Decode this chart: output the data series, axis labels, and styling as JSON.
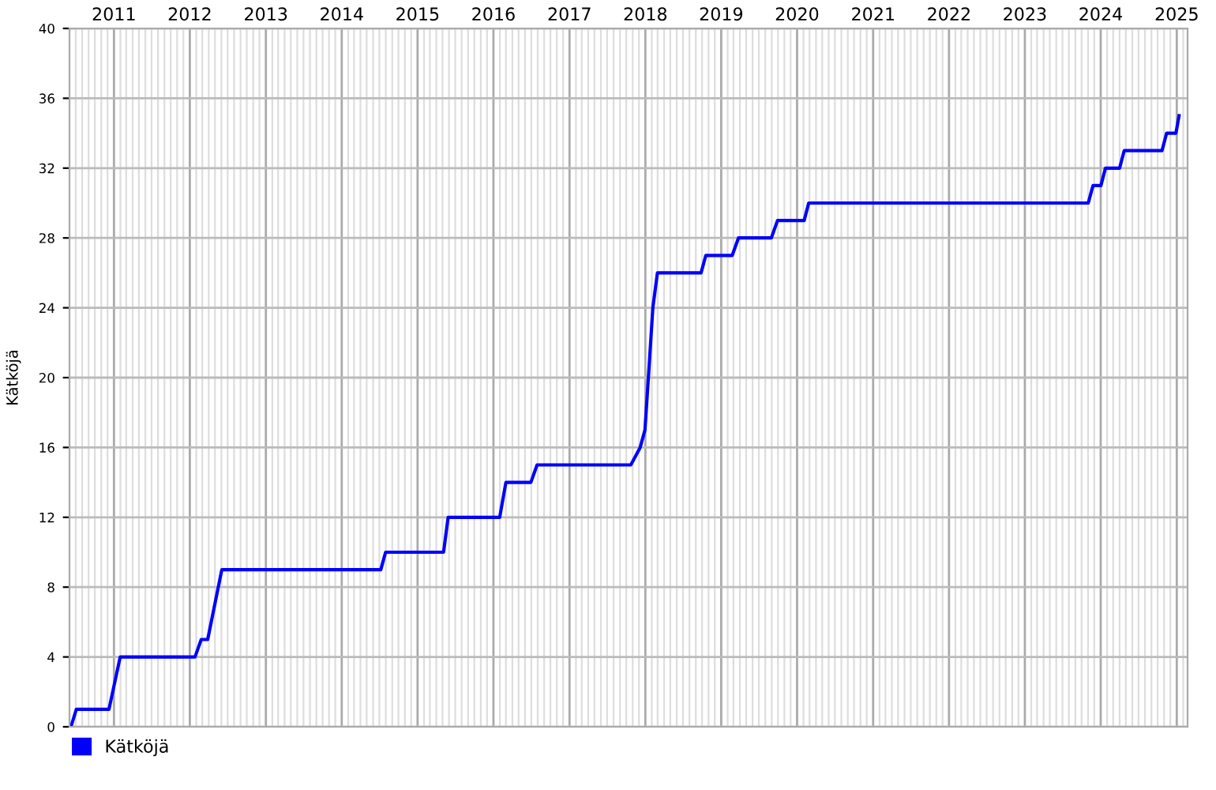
{
  "chart_data": {
    "type": "line",
    "ylabel": "Kätköjä",
    "x": [
      "2010-06-08",
      "2010-07-04",
      "2010-12-08",
      "2011-01-31",
      "2012-01-26",
      "2012-02-25",
      "2012-03-27",
      "2012-06-03",
      "2014-07-08",
      "2014-07-31",
      "2015-05-06",
      "2015-05-28",
      "2016-01-31",
      "2016-03-01",
      "2016-06-29",
      "2016-07-29",
      "2017-10-23",
      "2017-12-07",
      "2017-12-30",
      "2018-01-21",
      "2018-02-06",
      "2018-02-28",
      "2018-09-26",
      "2018-10-19",
      "2019-02-23",
      "2019-03-25",
      "2019-08-30",
      "2019-09-29",
      "2020-02-04",
      "2020-02-26",
      "2023-11-02",
      "2023-11-25",
      "2024-01-02",
      "2024-01-24",
      "2024-04-01",
      "2024-04-23",
      "2024-10-22",
      "2024-11-13",
      "2024-12-28",
      "2025-01-12"
    ],
    "series": [
      {
        "name": "Kätköjä",
        "color": "#0000ff",
        "values": [
          0,
          1,
          1,
          4,
          4,
          5,
          5,
          9,
          9,
          10,
          10,
          12,
          12,
          14,
          14,
          15,
          15,
          16,
          17,
          21,
          24,
          26,
          26,
          27,
          27,
          28,
          28,
          29,
          29,
          30,
          30,
          31,
          31,
          32,
          32,
          33,
          33,
          34,
          34,
          35
        ]
      }
    ],
    "xlim": [
      "2010-06-01",
      "2025-02-22"
    ],
    "xticks": [
      "2011",
      "2012",
      "2013",
      "2014",
      "2015",
      "2016",
      "2017",
      "2018",
      "2019",
      "2020",
      "2021",
      "2022",
      "2023",
      "2024",
      "2025"
    ],
    "ylim": [
      0,
      40
    ],
    "yticks": [
      0,
      4,
      8,
      12,
      16,
      20,
      24,
      28,
      32,
      36,
      40
    ],
    "grid": true,
    "legend": "bottom left",
    "marker": "none",
    "line_style": "solid"
  }
}
